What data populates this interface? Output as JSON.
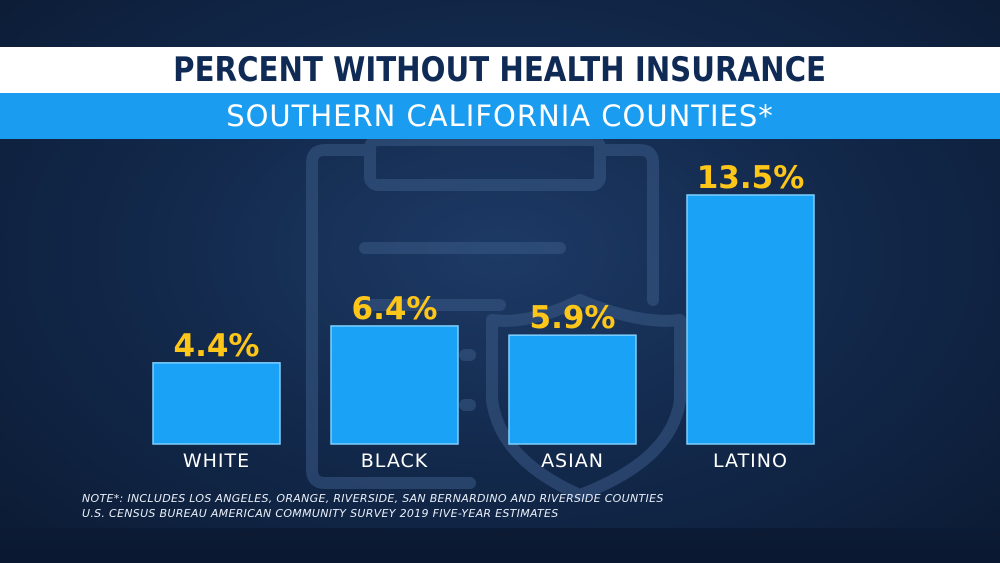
{
  "header": {
    "title": "PERCENT WITHOUT HEALTH INSURANCE",
    "subtitle": "SOUTHERN CALIFORNIA COUNTIES*"
  },
  "chart_data": {
    "type": "bar",
    "title": "PERCENT WITHOUT HEALTH INSURANCE",
    "subtitle": "SOUTHERN CALIFORNIA COUNTIES*",
    "categories": [
      "WHITE",
      "BLACK",
      "ASIAN",
      "LATINO"
    ],
    "values": [
      4.4,
      6.4,
      5.9,
      13.5
    ],
    "value_labels": [
      "4.4%",
      "6.4%",
      "5.9%",
      "13.5%"
    ],
    "xlabel": "",
    "ylabel": "",
    "ylim": [
      0,
      13.5
    ],
    "grid": false,
    "legend": "none"
  },
  "notes": {
    "line1": "NOTE*: INCLUDES LOS ANGELES, ORANGE, RIVERSIDE, SAN BERNARDINO AND RIVERSIDE COUNTIES",
    "line2": "U.S. CENSUS BUREAU AMERICAN COMMUNITY SURVEY 2019 FIVE-YEAR ESTIMATES"
  },
  "colors": {
    "bar": "#1aa2f7",
    "bar_edge": "#7fd0ff",
    "value_label": "#ffc61a",
    "category_label": "#ffffff",
    "title_text": "#0f2a55",
    "subtitle_bg": "#1a9df0"
  },
  "icons": {
    "watermark": "clipboard-shield-icon"
  }
}
